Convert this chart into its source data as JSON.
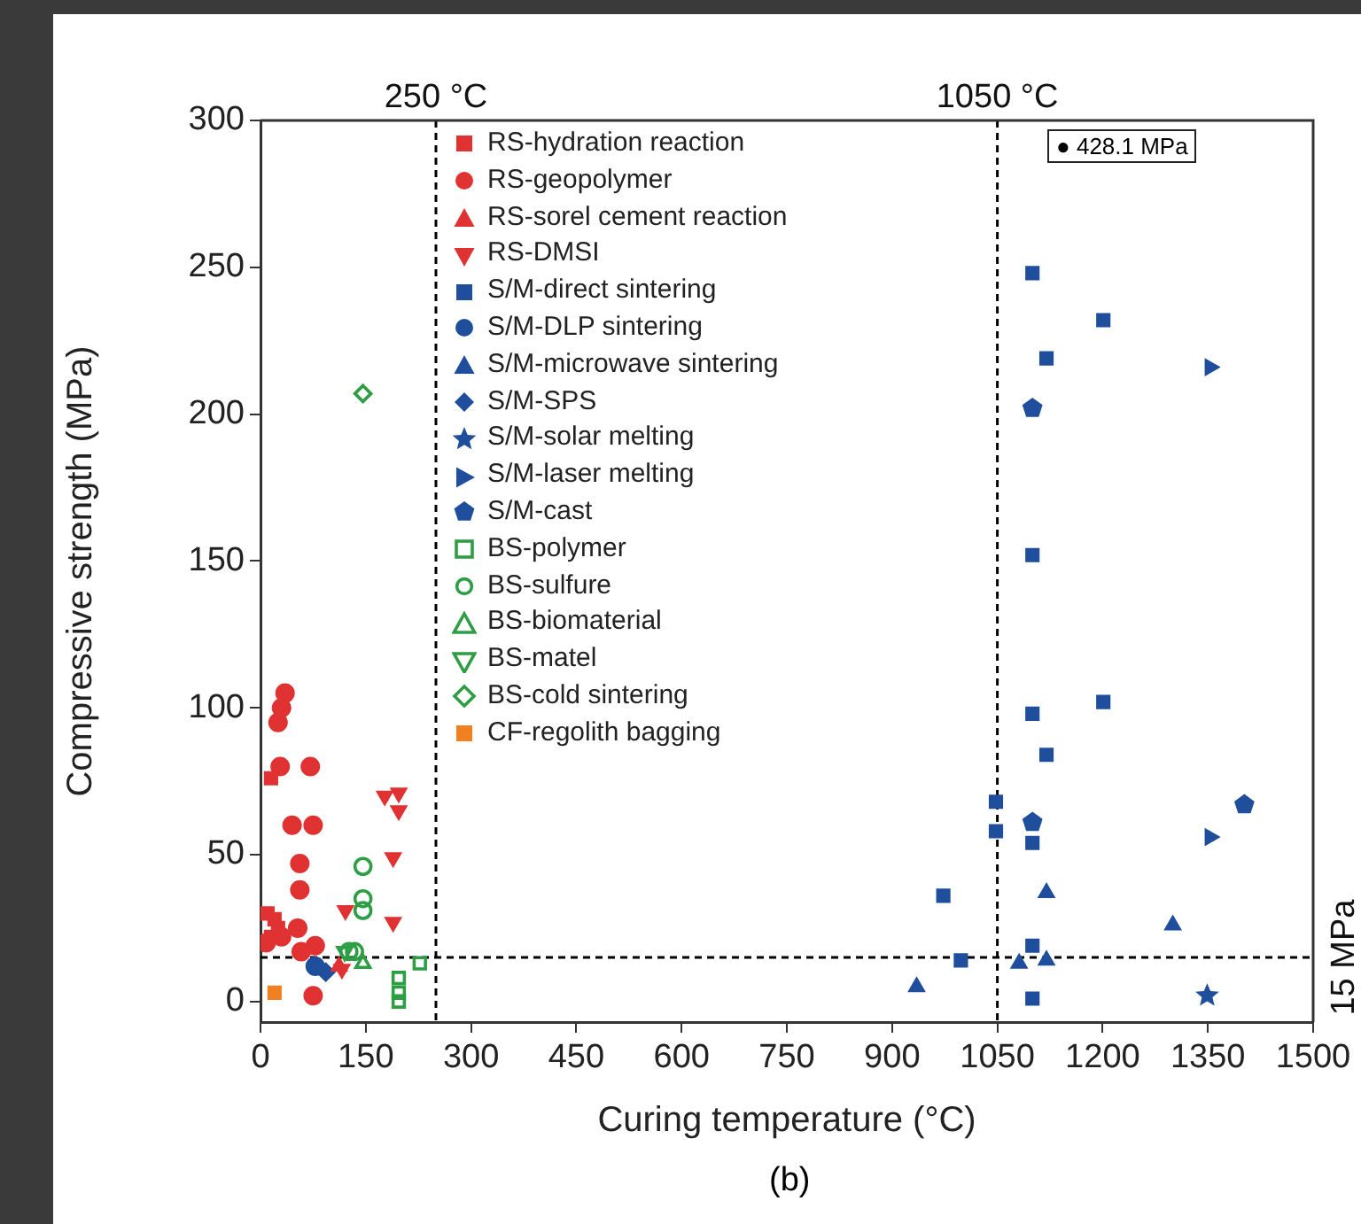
{
  "chart_data": {
    "type": "scatter",
    "xlabel": "Curing temperature (°C)",
    "ylabel": "Compressive strength (MPa)",
    "xlim": [
      0,
      1500
    ],
    "xticks": [
      0,
      150,
      300,
      450,
      600,
      750,
      900,
      1050,
      1200,
      1350,
      1500
    ],
    "ylim": [
      -7,
      300
    ],
    "yticks": [
      0,
      50,
      100,
      150,
      200,
      250,
      300
    ],
    "grid": false,
    "legend": "top left",
    "ref_lines": [
      {
        "axis": "x",
        "value": 250,
        "label": "250 °C",
        "line_style": "dashed",
        "color": "#000000"
      },
      {
        "axis": "x",
        "value": 1050,
        "label": "1050 °C",
        "line_style": "dashed",
        "color": "#000000"
      },
      {
        "axis": "y",
        "value": 15,
        "label": "15 MPa",
        "line_style": "dashed",
        "color": "#000000"
      }
    ],
    "annotations": [
      "● 428.1 MPa",
      "(b)"
    ],
    "series": [
      {
        "name": "RS-hydration reaction",
        "color": "#e03232",
        "marker": "square",
        "x": [
          10,
          20,
          15,
          25,
          15
        ],
        "values": [
          30,
          28,
          22,
          25,
          76
        ]
      },
      {
        "name": "RS-geopolymer",
        "color": "#e03232",
        "marker": "circle",
        "x": [
          25,
          30,
          35,
          28,
          71,
          45,
          75,
          56,
          56,
          53,
          78,
          58,
          75,
          8,
          30
        ],
        "values": [
          95,
          100,
          105,
          80,
          80,
          60,
          60,
          47,
          38,
          25,
          19,
          17,
          2,
          20,
          22
        ]
      },
      {
        "name": "RS-sorel cement reaction",
        "color": "#e03232",
        "marker": "triangle",
        "x": [
          112
        ],
        "values": [
          12
        ]
      },
      {
        "name": "RS-DMSI",
        "color": "#e03232",
        "marker": "triangle-down",
        "x": [
          177,
          197,
          197,
          189,
          121,
          189,
          116
        ],
        "values": [
          70,
          71,
          65,
          49,
          31,
          27,
          11
        ]
      },
      {
        "name": "S/M-direct sintering",
        "color": "#1f4e9c",
        "marker": "square",
        "x": [
          1100,
          1201,
          1120,
          1100,
          1100,
          1201,
          1120,
          1048,
          1048,
          1100,
          973,
          998,
          1100,
          1100
        ],
        "values": [
          248,
          232,
          219,
          152,
          98,
          102,
          84,
          68,
          58,
          54,
          36,
          14,
          19,
          1
        ]
      },
      {
        "name": "S/M-DLP sintering",
        "color": "#1f4e9c",
        "marker": "circle",
        "x": [
          78
        ],
        "values": [
          12
        ]
      },
      {
        "name": "S/M-microwave sintering",
        "color": "#1f4e9c",
        "marker": "triangle",
        "x": [
          935,
          1120,
          1300,
          1081,
          1120
        ],
        "values": [
          5,
          37,
          26,
          13,
          14
        ]
      },
      {
        "name": "S/M-SPS",
        "color": "#1f4e9c",
        "marker": "diamond",
        "x": [
          93
        ],
        "values": [
          10
        ]
      },
      {
        "name": "S/M-solar melting",
        "color": "#1f4e9c",
        "marker": "star",
        "x": [
          1349
        ],
        "values": [
          2
        ]
      },
      {
        "name": "S/M-laser melting",
        "color": "#1f4e9c",
        "marker": "triangle-right",
        "x": [
          1353,
          1353
        ],
        "values": [
          216,
          56
        ]
      },
      {
        "name": "S/M-cast",
        "color": "#1f4e9c",
        "x": [
          1100,
          1100,
          1402
        ],
        "values": [
          202,
          61,
          67
        ]
      },
      {
        "name": "BS-polymer",
        "color": "#2e9e45",
        "marker": "square-open",
        "x": [
          227,
          197,
          197,
          197
        ],
        "values": [
          13,
          8,
          3,
          0
        ]
      },
      {
        "name": "BS-sulfure",
        "color": "#2e9e45",
        "marker": "circle-open",
        "x": [
          146,
          146,
          146,
          126,
          134
        ],
        "values": [
          46,
          35,
          31,
          17,
          17
        ]
      },
      {
        "name": "BS-biomaterial",
        "color": "#2e9e45",
        "marker": "triangle-open",
        "x": [
          146
        ],
        "values": [
          13
        ]
      },
      {
        "name": "BS-matel",
        "color": "#2e9e45",
        "marker": "triangle-down-open",
        "x": [
          120
        ],
        "values": [
          17
        ]
      },
      {
        "name": "BS-cold sintering",
        "color": "#2e9e45",
        "marker": "diamond-open",
        "x": [
          146
        ],
        "values": [
          207
        ]
      },
      {
        "name": "CF-regolith bagging",
        "color": "#f08020",
        "marker": "square",
        "x": [
          20
        ],
        "values": [
          3
        ]
      }
    ]
  }
}
